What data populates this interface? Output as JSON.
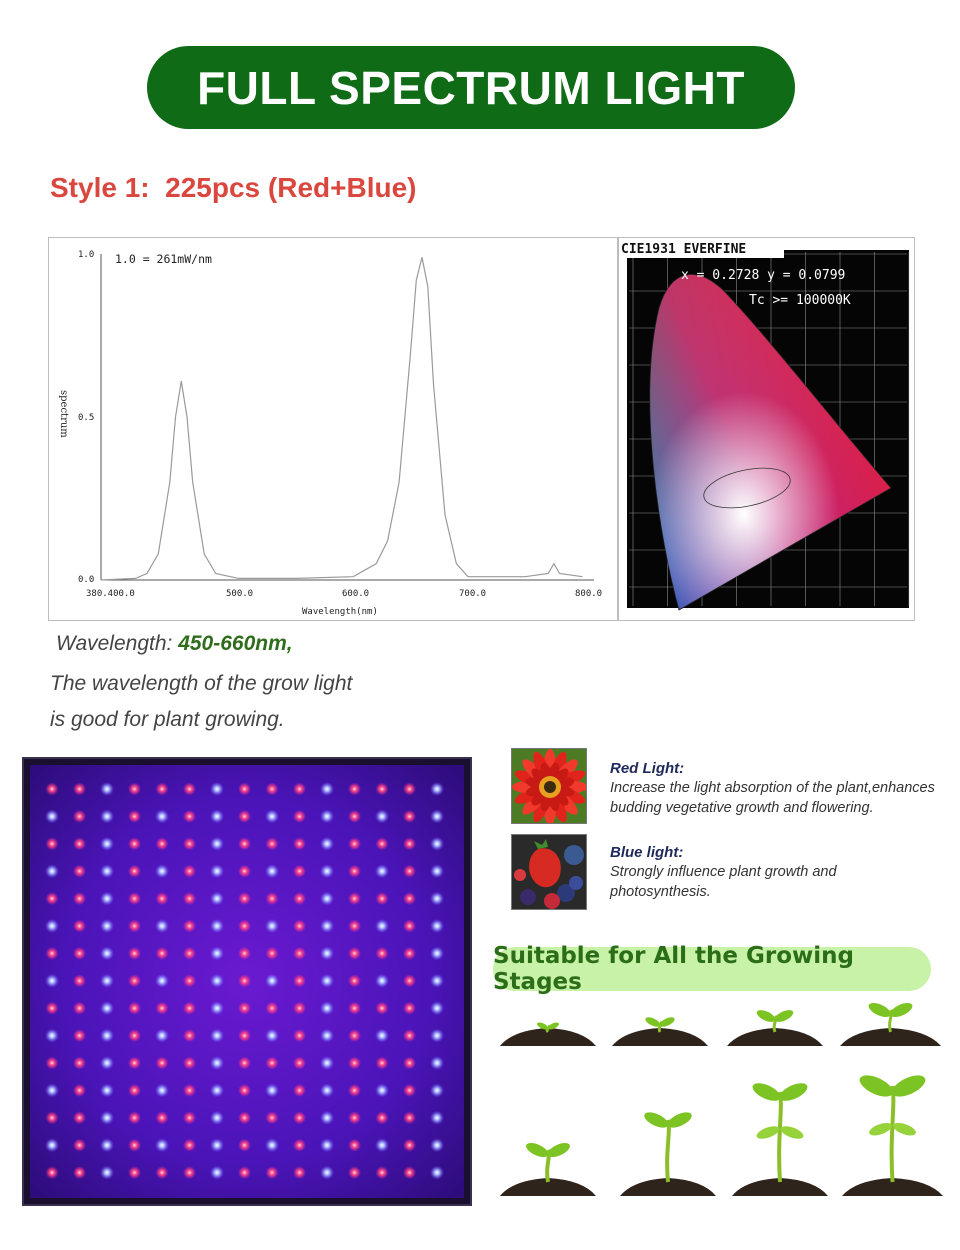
{
  "banner": {
    "title": "FULL SPECTRUM LIGHT"
  },
  "style": {
    "title": "Style 1:  225pcs (Red+Blue)"
  },
  "spectrum_chart": {
    "annotation": "1.0 = 261mW/nm",
    "ylabel": "spectrum",
    "xlabel": "Wavelength(nm)",
    "y_ticks": [
      "1.0",
      "0.5",
      "0.0"
    ],
    "x_ticks": [
      "380.400.0",
      "500.0",
      "600.0",
      "700.0",
      "800.0"
    ],
    "colors": {
      "line": "#9a9a9a",
      "axis": "#555555"
    }
  },
  "chart_data": {
    "type": "line",
    "title": "",
    "xlabel": "Wavelength(nm)",
    "ylabel": "spectrum",
    "xlim": [
      380,
      810
    ],
    "ylim": [
      0,
      1.0
    ],
    "series": [
      {
        "x": [
          380,
          410,
          420,
          430,
          440,
          445,
          450,
          455,
          460,
          470,
          480,
          500,
          550,
          600,
          620,
          630,
          640,
          650,
          655,
          660,
          665,
          670,
          680,
          690,
          700,
          750,
          770,
          775,
          780,
          800
        ],
        "values": [
          0.0,
          0.005,
          0.02,
          0.08,
          0.3,
          0.5,
          0.61,
          0.5,
          0.3,
          0.08,
          0.02,
          0.005,
          0.005,
          0.01,
          0.05,
          0.12,
          0.3,
          0.7,
          0.92,
          0.99,
          0.9,
          0.6,
          0.2,
          0.05,
          0.01,
          0.01,
          0.02,
          0.05,
          0.02,
          0.01
        ]
      }
    ]
  },
  "cie": {
    "title": "CIE1931 EVERFINE",
    "coords": "x = 0.2728 y = 0.0799",
    "tc": "Tc >= 100000K"
  },
  "wavelength": {
    "label": "Wavelength: ",
    "value": "450-660nm,",
    "line1": "The wavelength of the grow light",
    "line2": "is good for plant growing."
  },
  "features": [
    {
      "title": "Red Light:",
      "line1": "Increase the light absorption of the plant,enhances",
      "line2": "budding vegetative growth and flowering.",
      "icon": "red-flower-icon"
    },
    {
      "title": "Blue light:",
      "line1": "Strongly influence plant growth and",
      "line2": "photosynthesis.",
      "icon": "berries-icon"
    }
  ],
  "stages": {
    "title": "Suitable for All the Growing Stages"
  },
  "led_panel": {
    "rows": 15,
    "cols": 15,
    "colors": {
      "red": "#ff4a6e",
      "blue": "#9fb0ff",
      "bg": "#2a1058"
    }
  }
}
